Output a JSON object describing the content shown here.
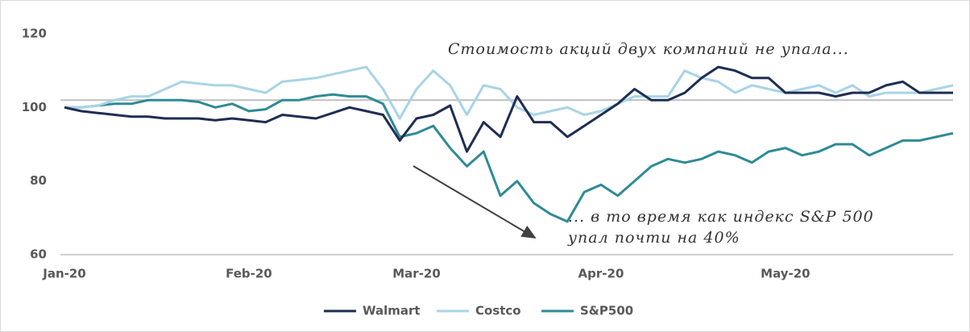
{
  "chart_data": {
    "type": "line",
    "categories": [
      "Jan-20",
      null,
      null,
      null,
      null,
      null,
      null,
      null,
      null,
      null,
      null,
      "Feb-20",
      null,
      null,
      null,
      null,
      null,
      null,
      null,
      null,
      null,
      "Mar-20",
      null,
      null,
      null,
      null,
      null,
      null,
      null,
      null,
      null,
      null,
      "Apr-20",
      null,
      null,
      null,
      null,
      null,
      null,
      null,
      null,
      null,
      null,
      "May-20",
      null,
      null,
      null,
      null,
      null,
      null,
      null,
      null,
      null,
      null
    ],
    "series": [
      {
        "name": "Walmart",
        "color": "#1f2d52",
        "values": [
          100,
          99,
          98.5,
          98,
          97.5,
          97.5,
          97,
          97,
          97,
          96.5,
          97,
          96.5,
          96,
          98,
          97.5,
          97,
          98.5,
          100,
          99,
          98,
          91,
          97,
          98,
          100.5,
          88,
          96,
          92,
          103,
          96,
          96,
          92,
          95,
          98,
          101,
          105,
          102,
          102,
          104,
          108,
          111,
          110,
          108,
          108,
          104,
          104,
          104,
          103,
          104,
          104,
          106,
          107,
          104,
          104,
          104
        ]
      },
      {
        "name": "Costco",
        "color": "#a8d4e6",
        "values": [
          100,
          100,
          100.5,
          102,
          103,
          103,
          105,
          107,
          106.5,
          106,
          106,
          105,
          104,
          107,
          107.5,
          108,
          109,
          110,
          111,
          105,
          97,
          105,
          110,
          106,
          98,
          106,
          105,
          100,
          98,
          99,
          100,
          98,
          99,
          101,
          103,
          103,
          103,
          110,
          108,
          107,
          104,
          106,
          105,
          104,
          105,
          106,
          104,
          106,
          103,
          104,
          104,
          104,
          105,
          106
        ]
      },
      {
        "name": "S&P500",
        "color": "#2e8b96",
        "values": [
          100,
          100,
          100.5,
          101,
          101,
          102,
          102,
          102,
          101.5,
          100,
          101,
          99,
          99.5,
          102,
          102,
          103,
          103.5,
          103,
          103,
          101,
          92,
          93,
          95,
          89,
          84,
          88,
          76,
          80,
          74,
          71,
          69,
          77,
          79,
          76,
          80,
          84,
          86,
          85,
          86,
          88,
          87,
          85,
          88,
          89,
          87,
          88,
          90,
          90,
          87,
          89,
          91,
          91,
          92,
          93
        ]
      }
    ],
    "ylim": [
      60,
      120
    ],
    "yticks": [
      60,
      80,
      100,
      120
    ],
    "reference_line": 102,
    "annotations": [
      "Стоимость акций двух компаний не упала...",
      "... в то время как индекс  S&P 500",
      "упал почти на 40%"
    ],
    "legend": "bottom"
  }
}
